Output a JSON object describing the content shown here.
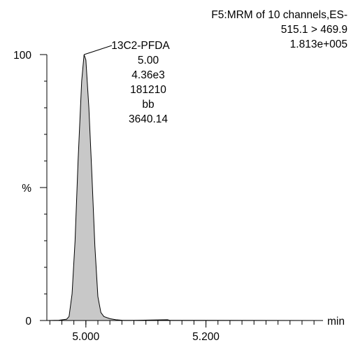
{
  "chart_data": {
    "type": "area",
    "header": {
      "line1": "F5:MRM of 10 channels,ES-",
      "line2": "515.1 > 469.9",
      "line3": "1.813e+005"
    },
    "x_unit": "min",
    "y_symbol": "%",
    "xlim": [
      4.935,
      5.395
    ],
    "ylim": [
      0,
      100
    ],
    "x_tick_labels": [
      "5.000",
      "5.200"
    ],
    "x_tick_values": [
      5.0,
      5.2
    ],
    "y_tick_labels": [
      "0",
      "100"
    ],
    "y_tick_values": [
      0,
      100
    ],
    "peak_label": {
      "name": "13C2-PFDA",
      "lines": [
        "5.00",
        "4.36e3",
        "181210",
        "bb",
        "3640.14"
      ]
    },
    "series": [
      {
        "fill": "#c8c8c8",
        "stroke": "#000000",
        "points": [
          [
            4.935,
            0.0
          ],
          [
            4.955,
            0.1
          ],
          [
            4.968,
            0.5
          ],
          [
            4.972,
            1.5
          ],
          [
            4.977,
            10
          ],
          [
            4.982,
            30
          ],
          [
            4.987,
            60
          ],
          [
            4.993,
            90
          ],
          [
            4.997,
            100
          ],
          [
            5.0,
            98
          ],
          [
            5.005,
            80
          ],
          [
            5.01,
            55
          ],
          [
            5.015,
            28
          ],
          [
            5.02,
            9
          ],
          [
            5.025,
            3
          ],
          [
            5.03,
            1.5
          ],
          [
            5.04,
            0.7
          ],
          [
            5.05,
            0.3
          ],
          [
            5.06,
            0.1
          ],
          [
            5.08,
            0.05
          ],
          [
            5.136,
            0.3
          ],
          [
            5.14,
            0.05
          ],
          [
            5.2,
            0.05
          ],
          [
            5.3,
            0.02
          ],
          [
            5.395,
            0.0
          ]
        ]
      }
    ],
    "x_minor_tick_step": 0.02,
    "y_minor_tick_step": 10
  }
}
